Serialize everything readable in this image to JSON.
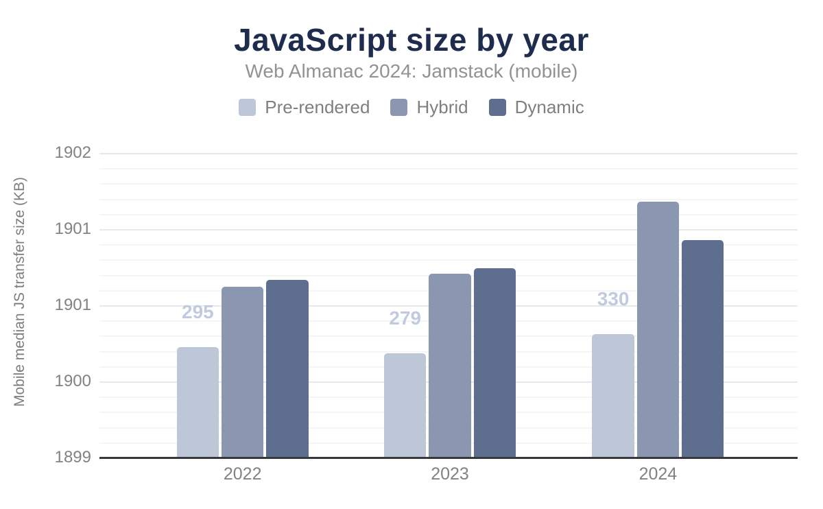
{
  "chart_data": {
    "type": "bar",
    "title": "JavaScript size by year",
    "subtitle": "Web Almanac 2024: Jamstack (mobile)",
    "ylabel": "Mobile median JS transfer size (KB)",
    "xlabel": "",
    "categories": [
      "2022",
      "2023",
      "2024"
    ],
    "series": [
      {
        "name": "Pre-rendered",
        "color": "#bec7d8",
        "values": [
          295,
          279,
          330
        ],
        "data_labels_shown": true
      },
      {
        "name": "Hybrid",
        "color": "#8b97b1",
        "values": [
          456,
          491,
          683
        ],
        "data_labels_shown": false
      },
      {
        "name": "Dynamic",
        "color": "#5e6e8e",
        "values": [
          474,
          505,
          580
        ],
        "data_labels_shown": false
      }
    ],
    "values_unit": "KB",
    "ylim": [
      0,
      813
    ],
    "y_axis_tick_labels_top_to_bottom": [
      "1902",
      "1901",
      "1901",
      "1900",
      "1899"
    ],
    "grid": {
      "major_intervals": 4,
      "minor_per_major": 5,
      "grid_on": true
    },
    "legend_position": "top",
    "colors": {
      "title": "#1e2c4e",
      "subtitle": "#909294",
      "legend_text": "#7d7f82",
      "tick_text": "#828282",
      "axis_title_text": "#7d7d7d",
      "axis_line": "#36383b",
      "gridline_major": "#e7e8ea",
      "gridline_minor": "#f5f5f6",
      "data_label": "#c2cbde",
      "background": "#ffffff"
    }
  }
}
